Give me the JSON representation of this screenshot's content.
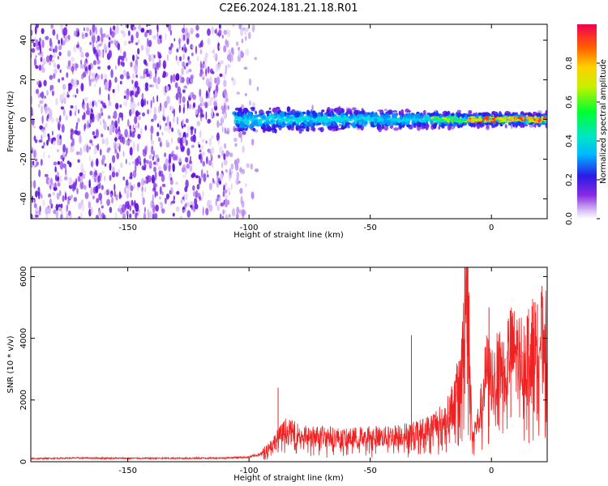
{
  "title": "C2E6.2024.181.21.18.R01",
  "chart_data": [
    {
      "type": "heatmap",
      "xlabel": "Height of straight line (km)",
      "ylabel": "Frequency (Hz)",
      "xlim": [
        -190,
        23
      ],
      "ylim": [
        -50,
        48
      ],
      "xticks": [
        -150,
        -100,
        -50,
        0
      ],
      "yticks": [
        -40,
        -20,
        0,
        20,
        40
      ],
      "noise_region_x": [
        -190,
        -96
      ],
      "signal_band": {
        "x_start": -106,
        "x_end": 23,
        "center_hz": 0,
        "half_width_hz": 5
      },
      "colorbar": {
        "label": "Normalized spectral amplitude",
        "range": [
          0.0,
          1.0
        ],
        "ticks": [
          0.0,
          0.2,
          0.4,
          0.6,
          0.8
        ],
        "colormap": "rainbow (violet to red)"
      }
    },
    {
      "type": "line",
      "xlabel": "Height of straight line (km)",
      "ylabel": "SNR (10 * v/v)",
      "xlim": [
        -190,
        23
      ],
      "ylim": [
        0,
        6300
      ],
      "xticks": [
        -150,
        -100,
        -50,
        0
      ],
      "yticks": [
        0,
        2000,
        4000,
        6000
      ],
      "series": [
        {
          "color": "#ee2222",
          "x": [
            -190,
            -170,
            -150,
            -130,
            -110,
            -100,
            -95,
            -90,
            -85,
            -80,
            -75,
            -70,
            -65,
            -60,
            -55,
            -50,
            -45,
            -40,
            -35,
            -30,
            -25,
            -22,
            -20,
            -18,
            -15,
            -12,
            -11,
            -10,
            -8,
            -5,
            -2,
            0,
            3,
            5,
            8,
            10,
            13,
            15,
            18,
            20,
            23
          ],
          "y": [
            100,
            120,
            110,
            110,
            120,
            150,
            250,
            600,
            1000,
            900,
            800,
            850,
            800,
            750,
            800,
            850,
            800,
            850,
            900,
            950,
            1100,
            1300,
            1200,
            1500,
            2000,
            3000,
            5500,
            6300,
            800,
            1400,
            3000,
            2700,
            3000,
            3200,
            3600,
            3500,
            3400,
            3600,
            3800,
            4000,
            4100
          ],
          "spikes": [
            [
              -88,
              2400
            ],
            [
              -33,
              4100
            ],
            [
              -11,
              6300
            ],
            [
              -10,
              5600
            ],
            [
              -1,
              5000
            ],
            [
              8,
              4900
            ],
            [
              19,
              5100
            ]
          ]
        }
      ]
    }
  ]
}
